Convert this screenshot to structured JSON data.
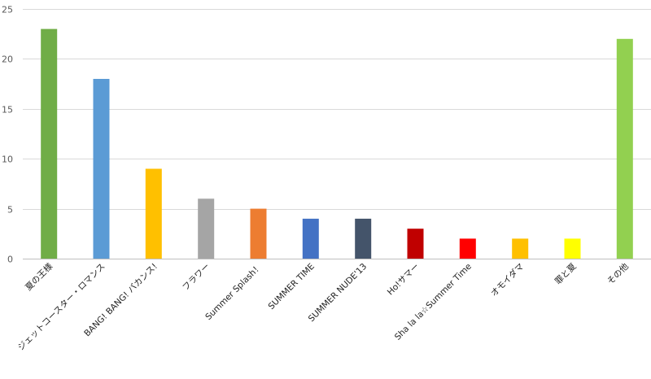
{
  "chart_data": {
    "type": "bar",
    "title": "",
    "xlabel": "",
    "ylabel": "",
    "ylim": [
      0,
      25
    ],
    "yticks": [
      0,
      5,
      10,
      15,
      20,
      25
    ],
    "grid": true,
    "legend": "none",
    "categories": [
      "夏の王様",
      "ジェットコースター・ロマンス",
      "BANG! BANG! バカンス!",
      "フラワー",
      "Summer Splash！",
      "SUMMER TIME",
      "SUMMER NUDE'13",
      "Ho!サマー",
      "Sha la la☆Summer Time",
      "オモイダマ",
      "罪と夏",
      "その他"
    ],
    "values": [
      23,
      18,
      9,
      6,
      5,
      4,
      4,
      3,
      2,
      2,
      2,
      22
    ],
    "colors": [
      "#70ad47",
      "#5b9bd5",
      "#ffc000",
      "#a5a5a5",
      "#ed7d31",
      "#4472c4",
      "#44546a",
      "#c00000",
      "#ff0000",
      "#ffc000",
      "#ffff00",
      "#92d050"
    ]
  }
}
